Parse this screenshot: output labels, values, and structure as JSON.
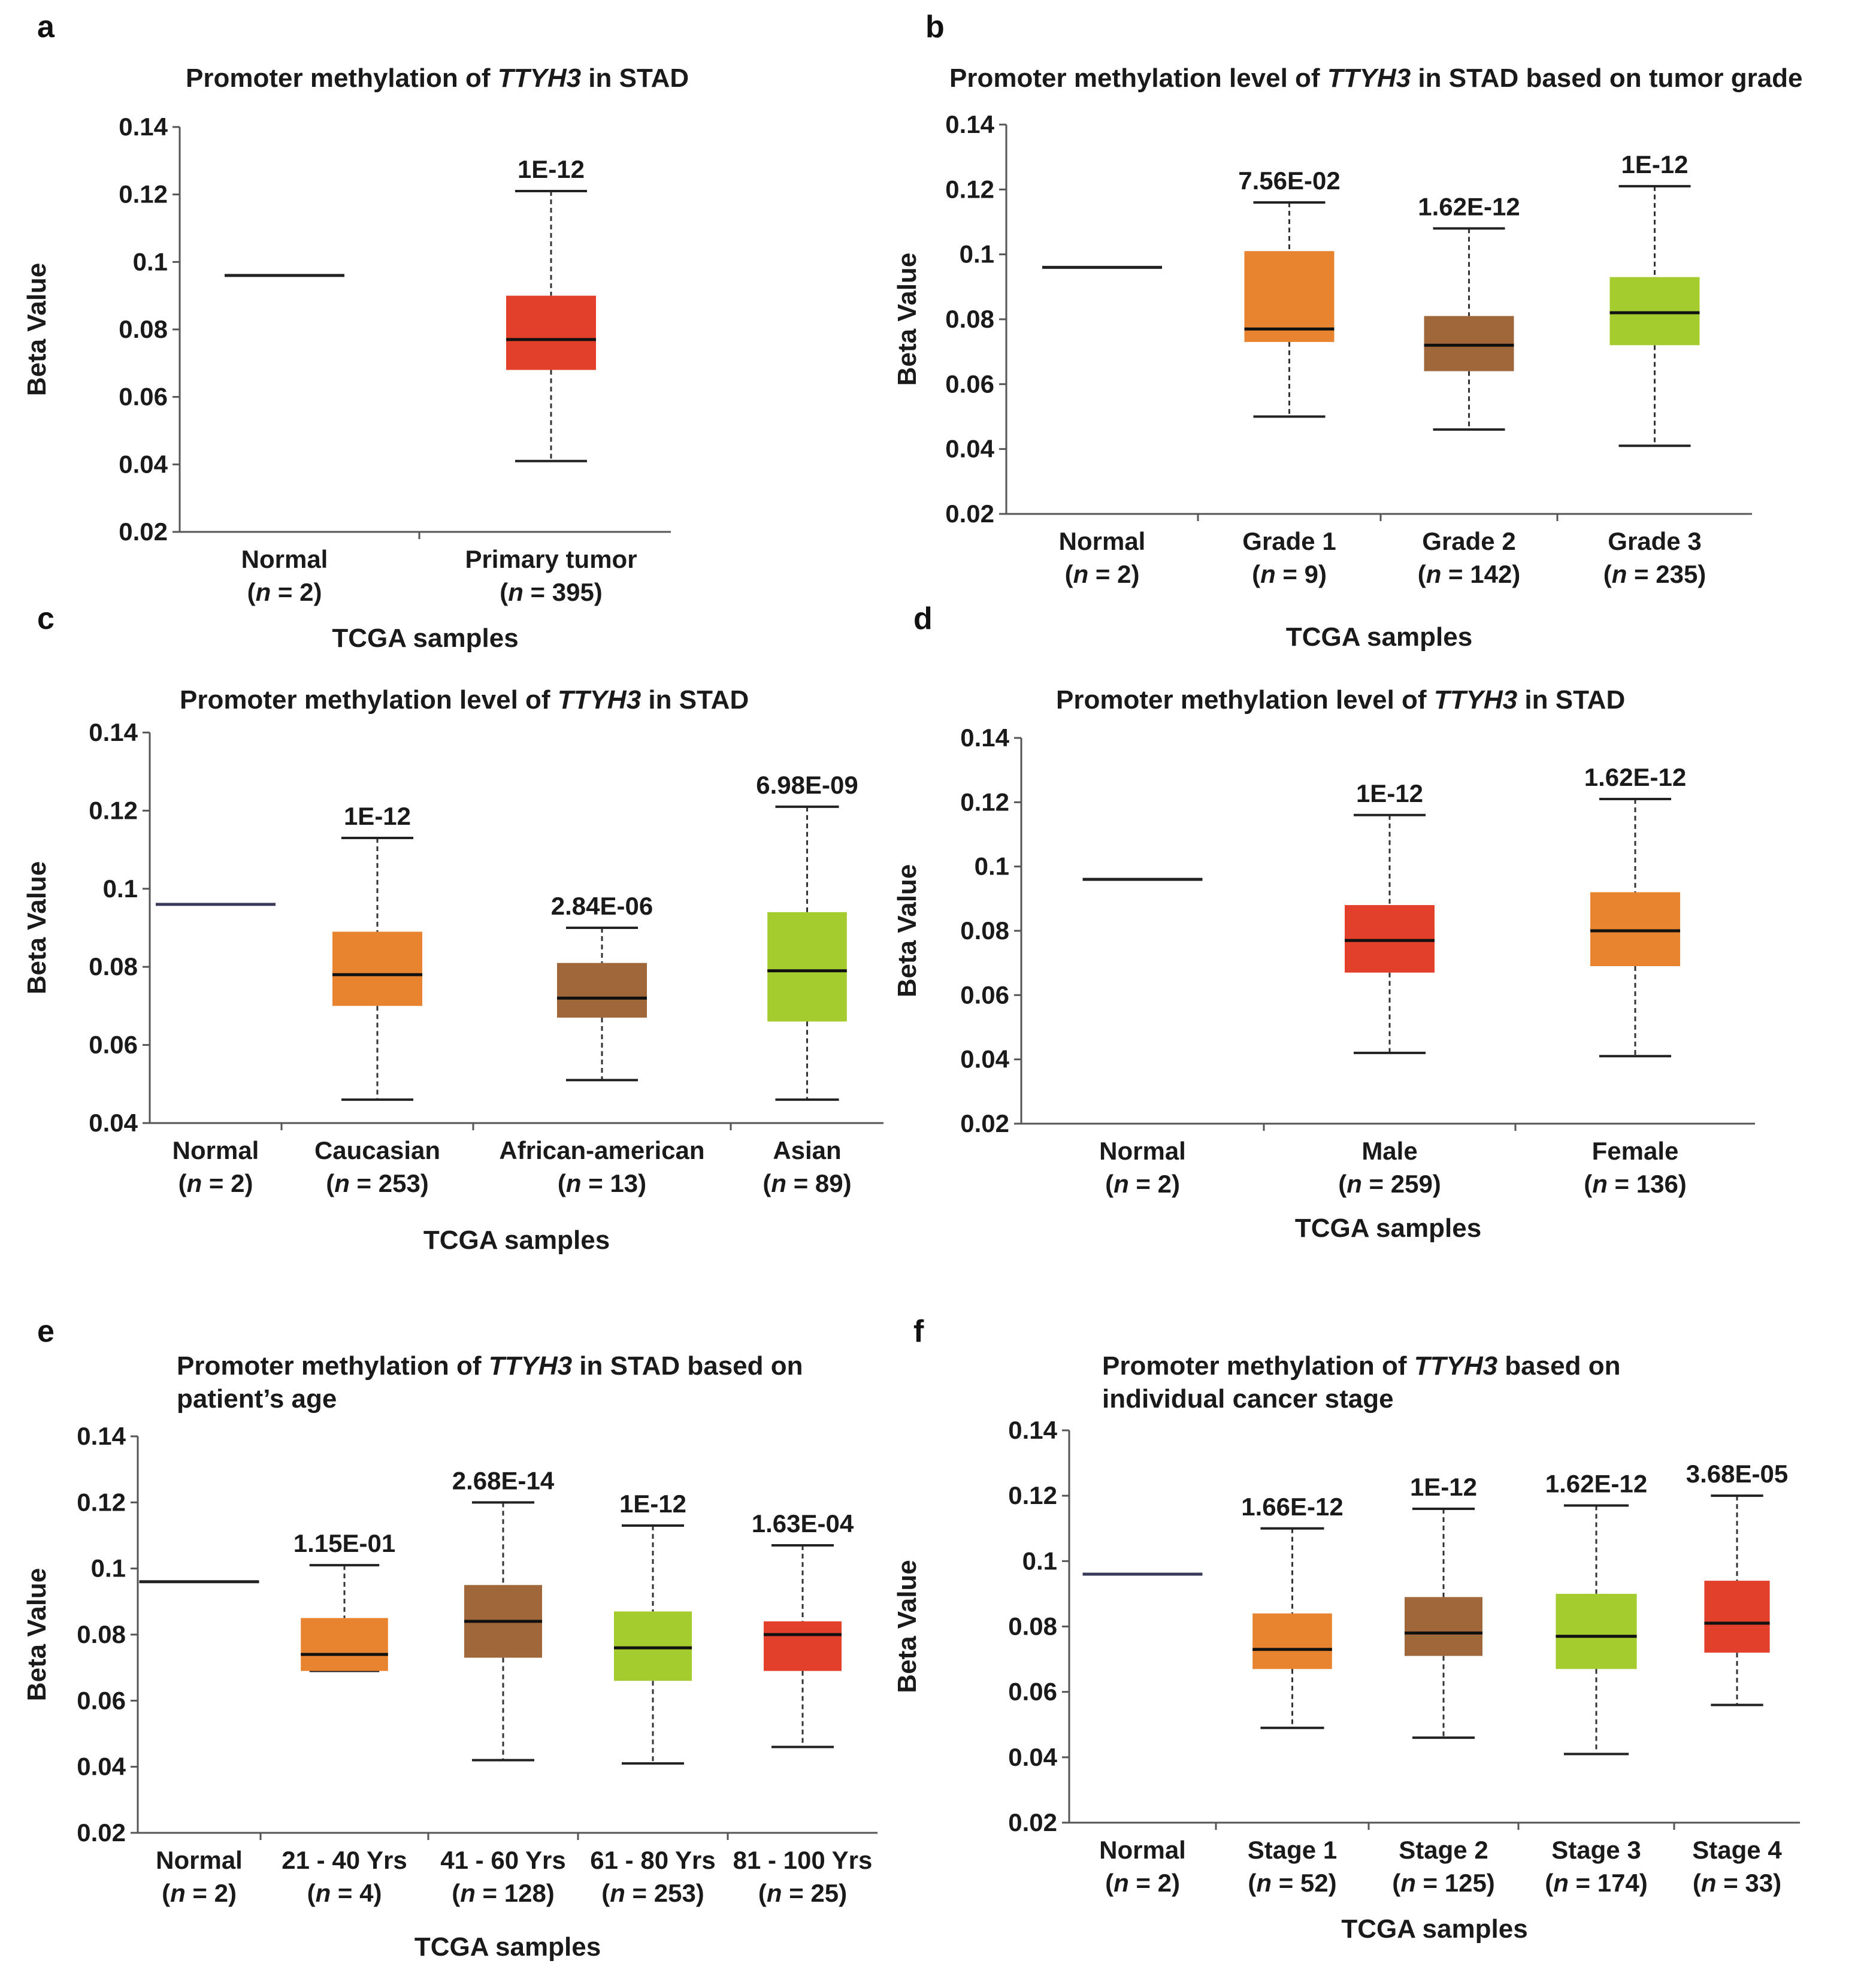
{
  "colors": {
    "red": "#e2402b",
    "orange": "#e8842f",
    "brown": "#a0683a",
    "green": "#a5cc2e",
    "normal_line": "#222222",
    "normal_line_blue": "#3a3a5a"
  },
  "chart_data": [
    {
      "panel": "a",
      "type": "box",
      "title_parts": [
        "Promoter methylation  of ",
        "TTYH3",
        " in STAD"
      ],
      "ylabel": "Beta  Value",
      "xlabel": "TCGA  samples",
      "ylim": [
        0.02,
        0.14
      ],
      "yticks": [
        "0.14",
        "0.12",
        "0.1",
        "0.08",
        "0.06",
        "0.04",
        "0.02"
      ],
      "categories": [
        {
          "name": "Normal",
          "n": "2",
          "kind": "line",
          "median": 0.096,
          "color": "normal_line"
        },
        {
          "name": "Primary tumor",
          "n": "395",
          "kind": "box",
          "min": 0.041,
          "q1": 0.068,
          "median": 0.077,
          "q3": 0.09,
          "max": 0.121,
          "color": "red",
          "pval": "1E-12"
        }
      ]
    },
    {
      "panel": "b",
      "type": "box",
      "title_parts": [
        "Promoter methylation level  of ",
        "TTYH3",
        " in STAD based on tumor grade"
      ],
      "ylabel": "Beta  Value",
      "xlabel": "TCGA  samples",
      "ylim": [
        0.02,
        0.14
      ],
      "yticks": [
        "0.14",
        "0.12",
        "0.1",
        "0.08",
        "0.06",
        "0.04",
        "0.02"
      ],
      "categories": [
        {
          "name": "Normal",
          "n": "2",
          "kind": "line",
          "median": 0.096,
          "color": "normal_line"
        },
        {
          "name": "Grade 1",
          "n": "9",
          "kind": "box",
          "min": 0.05,
          "q1": 0.073,
          "median": 0.077,
          "q3": 0.101,
          "max": 0.116,
          "color": "orange",
          "pval": "7.56E-02"
        },
        {
          "name": "Grade 2",
          "n": "142",
          "kind": "box",
          "min": 0.046,
          "q1": 0.064,
          "median": 0.072,
          "q3": 0.081,
          "max": 0.108,
          "color": "brown",
          "pval": "1.62E-12"
        },
        {
          "name": "Grade 3",
          "n": "235",
          "kind": "box",
          "min": 0.041,
          "q1": 0.072,
          "median": 0.082,
          "q3": 0.093,
          "max": 0.121,
          "color": "green",
          "pval": "1E-12"
        }
      ]
    },
    {
      "panel": "c",
      "type": "box",
      "title_parts": [
        "Promoter methylation level  of ",
        "TTYH3",
        " in STAD"
      ],
      "ylabel": "Beta  Value",
      "xlabel": "TCGA  samples",
      "ylim": [
        0.04,
        0.14
      ],
      "yticks": [
        "0.14",
        "0.12",
        "0.1",
        "0.08",
        "0.06",
        "0.04"
      ],
      "categories": [
        {
          "name": "Normal",
          "n": "2",
          "kind": "line",
          "median": 0.096,
          "color": "normal_line_blue"
        },
        {
          "name": "Caucasian",
          "n": "253",
          "kind": "box",
          "min": 0.046,
          "q1": 0.07,
          "median": 0.078,
          "q3": 0.089,
          "max": 0.113,
          "color": "orange",
          "pval": "1E-12"
        },
        {
          "name": "African-american",
          "n": "13",
          "kind": "box",
          "min": 0.051,
          "q1": 0.067,
          "median": 0.072,
          "q3": 0.081,
          "max": 0.09,
          "color": "brown",
          "pval": "2.84E-06"
        },
        {
          "name": "Asian",
          "n": "89",
          "kind": "box",
          "min": 0.046,
          "q1": 0.066,
          "median": 0.079,
          "q3": 0.094,
          "max": 0.121,
          "color": "green",
          "pval": "6.98E-09"
        }
      ]
    },
    {
      "panel": "d",
      "type": "box",
      "title_parts": [
        "Promoter methylation level  of ",
        "TTYH3",
        " in STAD"
      ],
      "ylabel": "Beta  Value",
      "xlabel": "TCGA  samples",
      "ylim": [
        0.02,
        0.14
      ],
      "yticks": [
        "0.14",
        "0.12",
        "0.1",
        "0.08",
        "0.06",
        "0.04",
        "0.02"
      ],
      "categories": [
        {
          "name": "Normal",
          "n": "2",
          "kind": "line",
          "median": 0.096,
          "color": "normal_line"
        },
        {
          "name": "Male",
          "n": "259",
          "kind": "box",
          "min": 0.042,
          "q1": 0.067,
          "median": 0.077,
          "q3": 0.088,
          "max": 0.116,
          "color": "red",
          "pval": "1E-12"
        },
        {
          "name": "Female",
          "n": "136",
          "kind": "box",
          "min": 0.041,
          "q1": 0.069,
          "median": 0.08,
          "q3": 0.092,
          "max": 0.121,
          "color": "orange",
          "pval": "1.62E-12"
        }
      ]
    },
    {
      "panel": "e",
      "type": "box",
      "title_parts": [
        "Promoter methylation  of ",
        "TTYH3",
        " in STAD based on"
      ],
      "title_line2": "patient’s age",
      "ylabel": "Beta  Value",
      "xlabel": "TCGA  samples",
      "ylim": [
        0.02,
        0.14
      ],
      "yticks": [
        "0.14",
        "0.12",
        "0.1",
        "0.08",
        "0.06",
        "0.04",
        "0.02"
      ],
      "categories": [
        {
          "name": "Normal",
          "n": "2",
          "kind": "line",
          "median": 0.096,
          "color": "normal_line"
        },
        {
          "name": "21 - 40 Yrs",
          "n": "4",
          "kind": "box",
          "min": 0.069,
          "q1": 0.069,
          "median": 0.074,
          "q3": 0.085,
          "max": 0.101,
          "color": "orange",
          "pval": "1.15E-01"
        },
        {
          "name": "41 - 60 Yrs",
          "n": "128",
          "kind": "box",
          "min": 0.042,
          "q1": 0.073,
          "median": 0.084,
          "q3": 0.095,
          "max": 0.12,
          "color": "brown",
          "pval": "2.68E-14"
        },
        {
          "name": "61 - 80 Yrs",
          "n": "253",
          "kind": "box",
          "min": 0.041,
          "q1": 0.066,
          "median": 0.076,
          "q3": 0.087,
          "max": 0.113,
          "color": "green",
          "pval": "1E-12"
        },
        {
          "name": "81 - 100 Yrs",
          "n": "25",
          "kind": "box",
          "min": 0.046,
          "q1": 0.069,
          "median": 0.08,
          "q3": 0.084,
          "max": 0.107,
          "color": "red",
          "pval": "1.63E-04"
        }
      ]
    },
    {
      "panel": "f",
      "type": "box",
      "title_parts": [
        "Promoter methylation of ",
        "TTYH3",
        " based on"
      ],
      "title_line2": "individual cancer stage",
      "ylabel": "Beta  Value",
      "xlabel": "TCGA  samples",
      "ylim": [
        0.02,
        0.14
      ],
      "yticks": [
        "0.14",
        "0.12",
        "0.1",
        "0.08",
        "0.06",
        "0.04",
        "0.02"
      ],
      "categories": [
        {
          "name": "Normal",
          "n": "2",
          "kind": "line",
          "median": 0.096,
          "color": "normal_line_blue"
        },
        {
          "name": "Stage 1",
          "n": "52",
          "kind": "box",
          "min": 0.049,
          "q1": 0.067,
          "median": 0.073,
          "q3": 0.084,
          "max": 0.11,
          "color": "orange",
          "pval": "1.66E-12"
        },
        {
          "name": "Stage 2",
          "n": "125",
          "kind": "box",
          "min": 0.046,
          "q1": 0.071,
          "median": 0.078,
          "q3": 0.089,
          "max": 0.116,
          "color": "brown",
          "pval": "1E-12"
        },
        {
          "name": "Stage 3",
          "n": "174",
          "kind": "box",
          "min": 0.041,
          "q1": 0.067,
          "median": 0.077,
          "q3": 0.09,
          "max": 0.117,
          "color": "green",
          "pval": "1.62E-12"
        },
        {
          "name": "Stage 4",
          "n": "33",
          "kind": "box",
          "min": 0.056,
          "q1": 0.072,
          "median": 0.081,
          "q3": 0.094,
          "max": 0.12,
          "color": "red",
          "pval": "3.68E-05"
        }
      ]
    }
  ]
}
